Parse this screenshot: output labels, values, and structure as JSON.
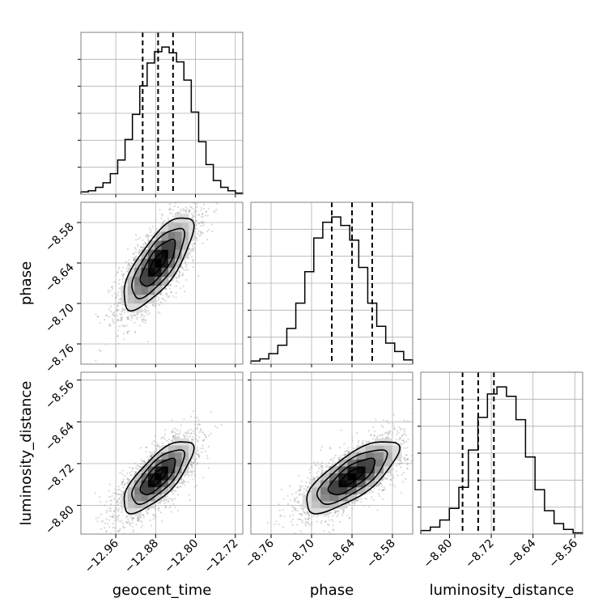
{
  "chart_data": {
    "type": "corner",
    "parameters": [
      "geocent_time",
      "phase",
      "luminosity_distance"
    ],
    "axis_labels": {
      "geocent_time": "geocent_time",
      "phase": "phase",
      "luminosity_distance": "luminosity_distance"
    },
    "ranges": {
      "geocent_time": [
        -13.03,
        -12.705
      ],
      "phase": [
        -8.79,
        -8.55
      ],
      "luminosity_distance": [
        -8.855,
        -8.545
      ]
    },
    "ticks": {
      "geocent_time": {
        "values": [
          -12.96,
          -12.88,
          -12.8,
          -12.72
        ],
        "labels": [
          "−12.96",
          "−12.88",
          "−12.80",
          "−12.72"
        ]
      },
      "phase": {
        "values": [
          -8.76,
          -8.7,
          -8.64,
          -8.58
        ],
        "labels": [
          "−8.76",
          "−8.70",
          "−8.64",
          "−8.58"
        ]
      },
      "luminosity_distance": {
        "values": [
          -8.8,
          -8.72,
          -8.64,
          -8.56
        ],
        "labels": [
          "−8.80",
          "−8.72",
          "−8.64",
          "−8.56"
        ]
      }
    },
    "quantiles": {
      "geocent_time": [
        -12.906,
        -12.875,
        -12.845
      ],
      "phase": [
        -8.67,
        -8.64,
        -8.61
      ],
      "luminosity_distance": [
        -8.775,
        -8.745,
        -8.715
      ]
    },
    "histograms": {
      "geocent_time": [
        2,
        3,
        6,
        10,
        18,
        30,
        48,
        70,
        95,
        115,
        125,
        129,
        124,
        116,
        100,
        72,
        46,
        26,
        12,
        6,
        3,
        1
      ],
      "phase": [
        3,
        5,
        10,
        18,
        34,
        58,
        88,
        120,
        135,
        140,
        132,
        118,
        92,
        58,
        36,
        20,
        12,
        4
      ],
      "luminosity_distance": [
        3,
        6,
        12,
        22,
        40,
        72,
        100,
        120,
        126,
        118,
        98,
        66,
        38,
        20,
        9,
        4,
        1
      ]
    },
    "grid": true,
    "contour_levels": 4
  }
}
